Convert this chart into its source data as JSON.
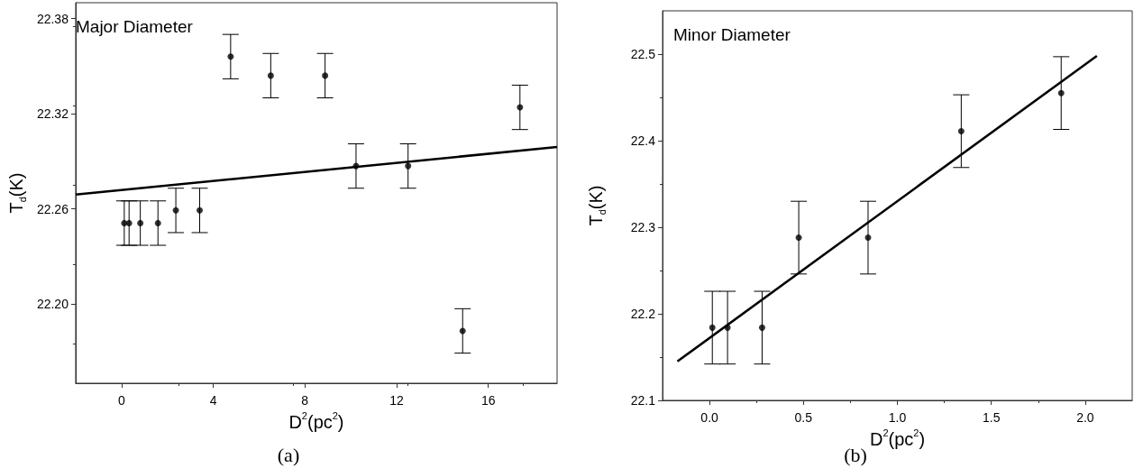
{
  "chart_data": [
    {
      "type": "scatter",
      "title": "Major Diameter",
      "xlabel": "D$^{2}$(pc$^{2}$)",
      "ylabel": "T$_{d}$(K)",
      "annotations": [
        "(a)"
      ],
      "grid": false,
      "xlim": [
        -2,
        19
      ],
      "ylim": [
        22.15,
        22.39
      ],
      "xticks": [
        0,
        4,
        8,
        12,
        16
      ],
      "yticks": [
        {
          "value": 22.2,
          "label": "22.20"
        },
        {
          "value": 22.26,
          "label": "22.26"
        },
        {
          "value": 22.32,
          "label": "22.32"
        },
        {
          "value": 22.38,
          "label": "22.38"
        }
      ],
      "series": [
        {
          "marker": "circle",
          "color": "#000000",
          "x": [
            0.12,
            0.33,
            0.82,
            1.59,
            2.37,
            3.41,
            4.76,
            6.51,
            8.88,
            10.23,
            12.5,
            14.88,
            17.38
          ],
          "values": [
            22.251,
            22.251,
            22.251,
            22.251,
            22.259,
            22.259,
            22.356,
            22.344,
            22.344,
            22.287,
            22.287,
            22.183,
            22.324
          ],
          "errors": [
            0.014,
            0.014,
            0.014,
            0.014,
            0.014,
            0.014,
            0.014,
            0.014,
            0.014,
            0.014,
            0.014,
            0.014,
            0.014
          ]
        },
        {
          "type": "line",
          "marker": "none",
          "color": "#000000",
          "x": [
            -2,
            19
          ],
          "values": [
            22.269,
            22.299
          ]
        }
      ]
    },
    {
      "type": "scatter",
      "title": "Minor Diameter",
      "xlabel": "D$^{2}$(pc$^{2}$)",
      "ylabel": "T$_{d}$(K)",
      "annotations": [
        "(b)"
      ],
      "grid": false,
      "xlim": [
        -0.25,
        2.25
      ],
      "ylim": [
        22.1,
        22.55
      ],
      "xticks": [
        {
          "value": 0,
          "label": "0.0"
        },
        0.5,
        {
          "value": 1,
          "label": "1.0"
        },
        1.5,
        {
          "value": 2,
          "label": "2.0"
        }
      ],
      "yticks": [
        22.1,
        22.2,
        22.3,
        22.4,
        22.5
      ],
      "series": [
        {
          "marker": "circle",
          "color": "#000000",
          "x": [
            0.015,
            0.096,
            0.28,
            0.475,
            0.844,
            1.34,
            1.872
          ],
          "values": [
            22.184,
            22.184,
            22.184,
            22.288,
            22.288,
            22.411,
            22.455
          ],
          "errors": [
            0.042,
            0.042,
            0.042,
            0.042,
            0.042,
            0.042,
            0.042
          ]
        },
        {
          "type": "line",
          "marker": "none",
          "color": "#000000",
          "x": [
            -0.171,
            2.062
          ],
          "values": [
            22.145,
            22.498
          ]
        }
      ]
    }
  ]
}
